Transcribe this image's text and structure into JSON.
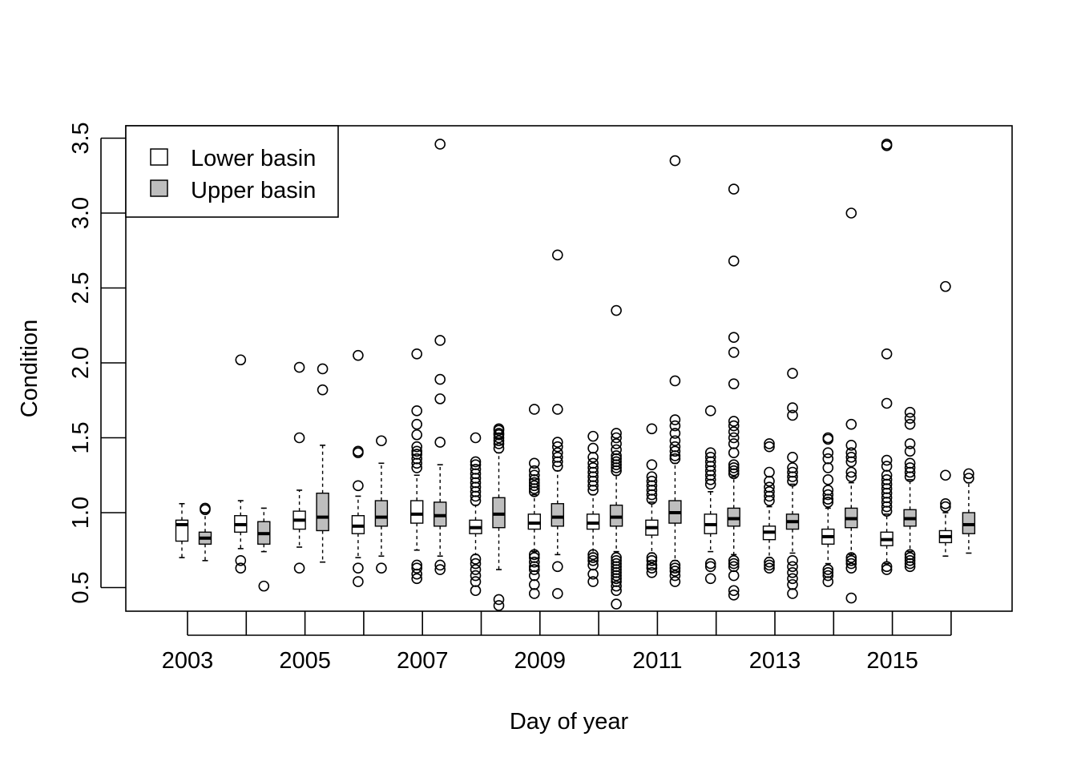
{
  "chart_data": {
    "type": "boxplot",
    "title": "",
    "xlabel": "Day of year",
    "ylabel": "Condition",
    "ylim": [
      0.35,
      3.6
    ],
    "y_ticks": [
      "0.5",
      "1.0",
      "1.5",
      "2.0",
      "2.5",
      "3.0",
      "3.5"
    ],
    "x_tick_labels": [
      "2003",
      "2005",
      "2007",
      "2009",
      "2011",
      "2013",
      "2015"
    ],
    "legend_position": "top-left",
    "colors": {
      "Lower basin": "#ffffff",
      "Upper basin": "#bebebe"
    },
    "series": [
      {
        "name": "Lower basin",
        "boxes": [
          {
            "year": "2003",
            "whisker_low": 0.7,
            "q1": 0.81,
            "median": 0.92,
            "q3": 0.95,
            "whisker_high": 1.06,
            "outliers": []
          },
          {
            "year": "2004",
            "whisker_low": 0.76,
            "q1": 0.87,
            "median": 0.92,
            "q3": 0.98,
            "whisker_high": 1.08,
            "outliers": [
              0.63,
              0.68,
              2.02
            ]
          },
          {
            "year": "2005",
            "whisker_low": 0.77,
            "q1": 0.89,
            "median": 0.95,
            "q3": 1.01,
            "whisker_high": 1.15,
            "outliers": [
              0.63,
              1.5,
              1.97
            ]
          },
          {
            "year": "2006",
            "whisker_low": 0.7,
            "q1": 0.86,
            "median": 0.91,
            "q3": 0.98,
            "whisker_high": 1.11,
            "outliers": [
              0.54,
              0.63,
              1.18,
              1.4,
              1.41,
              2.05
            ]
          },
          {
            "year": "2007",
            "whisker_low": 0.75,
            "q1": 0.93,
            "median": 0.99,
            "q3": 1.08,
            "whisker_high": 1.25,
            "outliers": [
              0.56,
              0.59,
              0.63,
              0.65,
              1.3,
              1.33,
              1.36,
              1.39,
              1.41,
              1.44,
              1.52,
              1.59,
              1.68,
              2.06
            ]
          },
          {
            "year": "2008",
            "whisker_low": 0.72,
            "q1": 0.86,
            "median": 0.9,
            "q3": 0.95,
            "whisker_high": 1.05,
            "outliers": [
              0.48,
              0.54,
              0.58,
              0.62,
              0.66,
              0.69,
              1.08,
              1.11,
              1.14,
              1.17,
              1.2,
              1.23,
              1.26,
              1.29,
              1.32,
              1.34,
              1.5
            ]
          },
          {
            "year": "2009",
            "whisker_low": 0.74,
            "q1": 0.89,
            "median": 0.93,
            "q3": 0.99,
            "whisker_high": 1.12,
            "outliers": [
              0.46,
              0.52,
              0.58,
              0.62,
              0.64,
              0.67,
              0.7,
              0.72,
              1.14,
              1.16,
              1.18,
              1.2,
              1.22,
              1.25,
              1.28,
              1.33,
              1.69
            ]
          },
          {
            "year": "2010",
            "whisker_low": 0.73,
            "q1": 0.89,
            "median": 0.93,
            "q3": 0.99,
            "whisker_high": 1.12,
            "outliers": [
              0.54,
              0.59,
              0.65,
              0.68,
              0.7,
              0.72,
              1.15,
              1.18,
              1.21,
              1.24,
              1.27,
              1.3,
              1.33,
              1.37,
              1.43,
              1.51
            ]
          },
          {
            "year": "2011",
            "whisker_low": 0.73,
            "q1": 0.85,
            "median": 0.9,
            "q3": 0.95,
            "whisker_high": 1.07,
            "outliers": [
              0.6,
              0.63,
              0.65,
              0.68,
              0.7,
              1.09,
              1.12,
              1.15,
              1.18,
              1.21,
              1.24,
              1.32,
              1.56
            ]
          },
          {
            "year": "2012",
            "whisker_low": 0.74,
            "q1": 0.86,
            "median": 0.92,
            "q3": 0.99,
            "whisker_high": 1.14,
            "outliers": [
              0.56,
              0.64,
              0.66,
              1.19,
              1.22,
              1.25,
              1.28,
              1.31,
              1.34,
              1.37,
              1.4,
              1.68
            ]
          },
          {
            "year": "2013",
            "whisker_low": 0.7,
            "q1": 0.82,
            "median": 0.87,
            "q3": 0.91,
            "whisker_high": 1.04,
            "outliers": [
              0.63,
              0.65,
              0.67,
              1.08,
              1.11,
              1.14,
              1.17,
              1.21,
              1.27,
              1.44,
              1.46
            ]
          },
          {
            "year": "2014",
            "whisker_low": 0.66,
            "q1": 0.79,
            "median": 0.84,
            "q3": 0.89,
            "whisker_high": 1.03,
            "outliers": [
              0.54,
              0.58,
              0.6,
              0.62,
              1.07,
              1.09,
              1.12,
              1.15,
              1.22,
              1.3,
              1.36,
              1.4,
              1.49,
              1.5
            ]
          },
          {
            "year": "2015",
            "whisker_low": 0.66,
            "q1": 0.78,
            "median": 0.82,
            "q3": 0.87,
            "whisker_high": 0.99,
            "outliers": [
              0.62,
              0.64,
              1.01,
              1.04,
              1.07,
              1.1,
              1.13,
              1.16,
              1.19,
              1.22,
              1.25,
              1.31,
              1.35,
              1.73,
              2.06,
              3.45,
              3.46
            ]
          },
          {
            "year": "2016",
            "whisker_low": 0.71,
            "q1": 0.8,
            "median": 0.84,
            "q3": 0.88,
            "whisker_high": 1.0,
            "outliers": [
              1.04,
              1.06,
              1.25,
              2.51
            ]
          }
        ]
      },
      {
        "name": "Upper basin",
        "boxes": [
          {
            "year": "2003",
            "whisker_low": 0.68,
            "q1": 0.79,
            "median": 0.83,
            "q3": 0.87,
            "whisker_high": 1.0,
            "outliers": [
              1.02,
              1.03
            ]
          },
          {
            "year": "2004",
            "whisker_low": 0.74,
            "q1": 0.79,
            "median": 0.86,
            "q3": 0.94,
            "whisker_high": 1.03,
            "outliers": [
              0.51
            ]
          },
          {
            "year": "2005",
            "whisker_low": 0.67,
            "q1": 0.88,
            "median": 0.97,
            "q3": 1.13,
            "whisker_high": 1.45,
            "outliers": [
              1.82,
              1.96
            ]
          },
          {
            "year": "2006",
            "whisker_low": 0.71,
            "q1": 0.91,
            "median": 0.97,
            "q3": 1.08,
            "whisker_high": 1.33,
            "outliers": [
              0.63,
              1.48
            ]
          },
          {
            "year": "2007",
            "whisker_low": 0.71,
            "q1": 0.91,
            "median": 0.98,
            "q3": 1.07,
            "whisker_high": 1.32,
            "outliers": [
              0.62,
              0.65,
              1.47,
              1.76,
              1.89,
              2.15,
              3.46
            ]
          },
          {
            "year": "2008",
            "whisker_low": 0.62,
            "q1": 0.9,
            "median": 0.99,
            "q3": 1.1,
            "whisker_high": 1.4,
            "outliers": [
              0.38,
              0.42,
              1.43,
              1.46,
              1.48,
              1.5,
              1.52,
              1.53,
              1.55,
              1.56
            ]
          },
          {
            "year": "2009",
            "whisker_low": 0.72,
            "q1": 0.91,
            "median": 0.97,
            "q3": 1.06,
            "whisker_high": 1.28,
            "outliers": [
              0.46,
              0.64,
              1.31,
              1.34,
              1.37,
              1.4,
              1.44,
              1.47,
              1.69,
              2.72
            ]
          },
          {
            "year": "2010",
            "whisker_low": 0.74,
            "q1": 0.91,
            "median": 0.97,
            "q3": 1.05,
            "whisker_high": 1.25,
            "outliers": [
              0.39,
              0.48,
              0.51,
              0.54,
              0.56,
              0.58,
              0.6,
              0.62,
              0.64,
              0.66,
              0.68,
              0.7,
              1.28,
              1.3,
              1.32,
              1.34,
              1.36,
              1.38,
              1.42,
              1.46,
              1.5,
              1.53,
              2.35
            ]
          },
          {
            "year": "2011",
            "whisker_low": 0.68,
            "q1": 0.93,
            "median": 1.0,
            "q3": 1.08,
            "whisker_high": 1.33,
            "outliers": [
              0.54,
              0.58,
              0.61,
              0.63,
              0.65,
              1.36,
              1.38,
              1.41,
              1.44,
              1.48,
              1.53,
              1.58,
              1.62,
              1.88,
              3.35
            ]
          },
          {
            "year": "2012",
            "whisker_low": 0.72,
            "q1": 0.91,
            "median": 0.96,
            "q3": 1.03,
            "whisker_high": 1.24,
            "outliers": [
              0.45,
              0.48,
              0.58,
              0.64,
              0.66,
              0.68,
              1.26,
              1.28,
              1.3,
              1.32,
              1.4,
              1.46,
              1.5,
              1.54,
              1.58,
              1.61,
              1.86,
              2.07,
              2.17,
              2.68,
              3.16
            ]
          },
          {
            "year": "2013",
            "whisker_low": 0.73,
            "q1": 0.89,
            "median": 0.94,
            "q3": 0.99,
            "whisker_high": 1.19,
            "outliers": [
              0.46,
              0.52,
              0.56,
              0.6,
              0.64,
              0.68,
              1.21,
              1.24,
              1.27,
              1.3,
              1.37,
              1.65,
              1.7,
              1.93
            ]
          },
          {
            "year": "2014",
            "whisker_low": 0.72,
            "q1": 0.9,
            "median": 0.96,
            "q3": 1.03,
            "whisker_high": 1.2,
            "outliers": [
              0.43,
              0.63,
              0.66,
              0.68,
              0.7,
              1.24,
              1.27,
              1.34,
              1.37,
              1.4,
              1.45,
              1.59,
              3.0
            ]
          },
          {
            "year": "2015",
            "whisker_low": 0.74,
            "q1": 0.91,
            "median": 0.96,
            "q3": 1.02,
            "whisker_high": 1.22,
            "outliers": [
              0.64,
              0.66,
              0.68,
              0.7,
              0.72,
              1.24,
              1.27,
              1.3,
              1.33,
              1.41,
              1.46,
              1.59,
              1.63,
              1.67
            ]
          },
          {
            "year": "2016",
            "whisker_low": 0.73,
            "q1": 0.86,
            "median": 0.92,
            "q3": 1.0,
            "whisker_high": 1.2,
            "outliers": [
              1.23,
              1.26
            ]
          }
        ]
      }
    ]
  }
}
